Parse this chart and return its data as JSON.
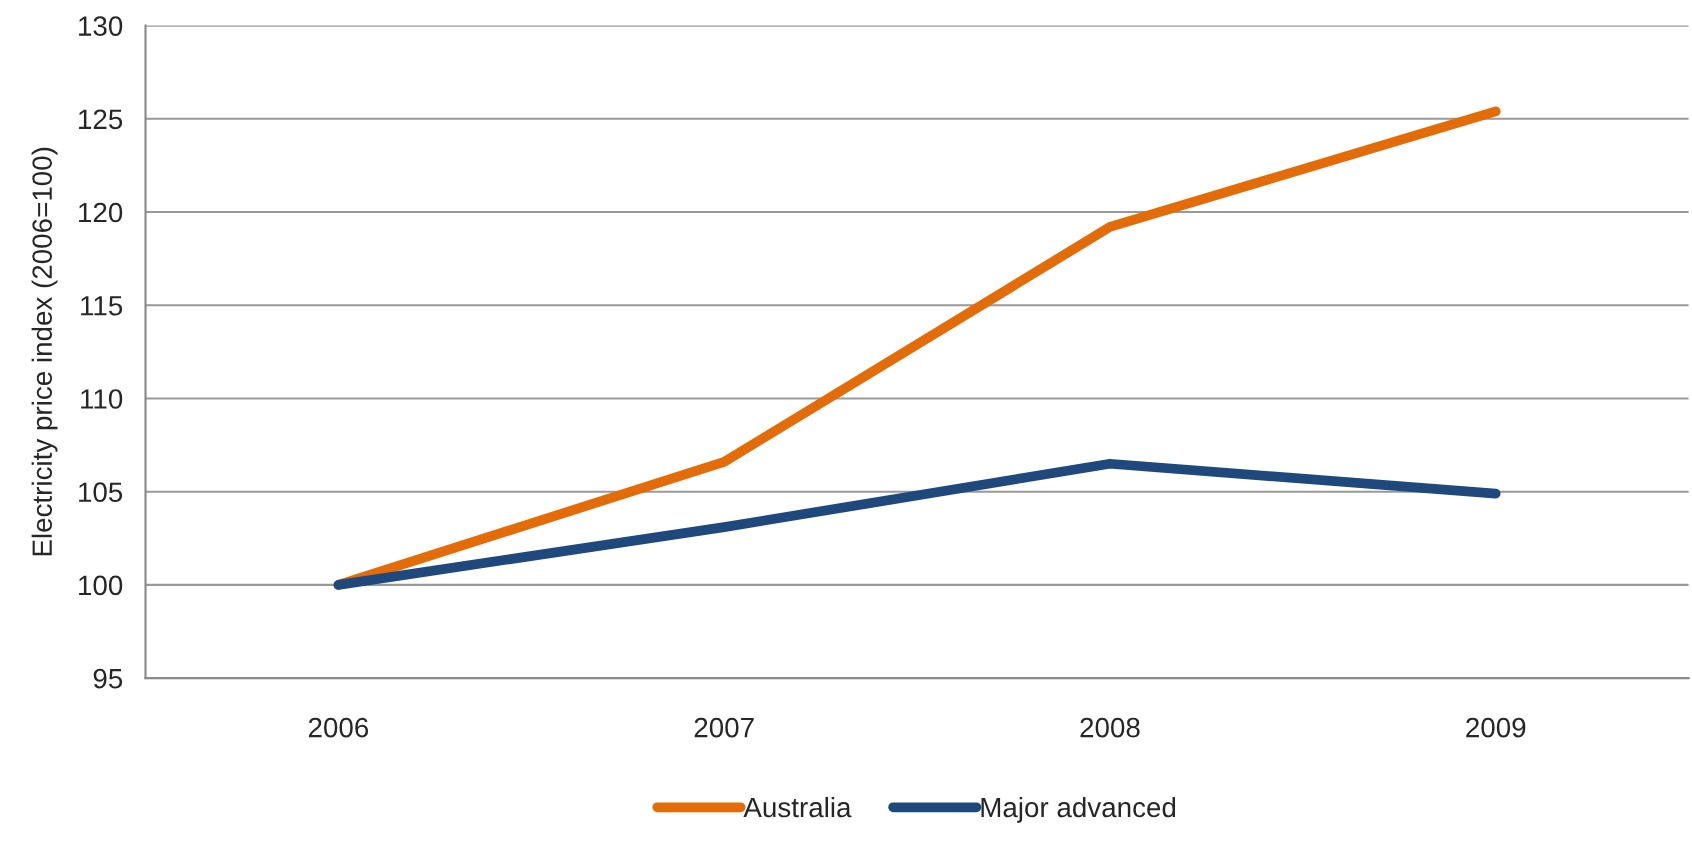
{
  "chart_data": {
    "type": "line",
    "ylabel": "Electricity price index (2006=100)",
    "categories": [
      "2006",
      "2007",
      "2008",
      "2009"
    ],
    "series": [
      {
        "name": "Australia",
        "color": "#e36c09",
        "values": [
          100,
          106.6,
          119.2,
          125.4
        ]
      },
      {
        "name": "Major advanced",
        "color": "#1f497d",
        "values": [
          100,
          103.1,
          106.5,
          104.9
        ]
      }
    ],
    "ylim": [
      95,
      130
    ],
    "yticks": [
      95,
      100,
      105,
      110,
      115,
      120,
      125,
      130
    ],
    "grid": "y",
    "legend": "bottom",
    "marker": "none",
    "line_style": "solid"
  }
}
